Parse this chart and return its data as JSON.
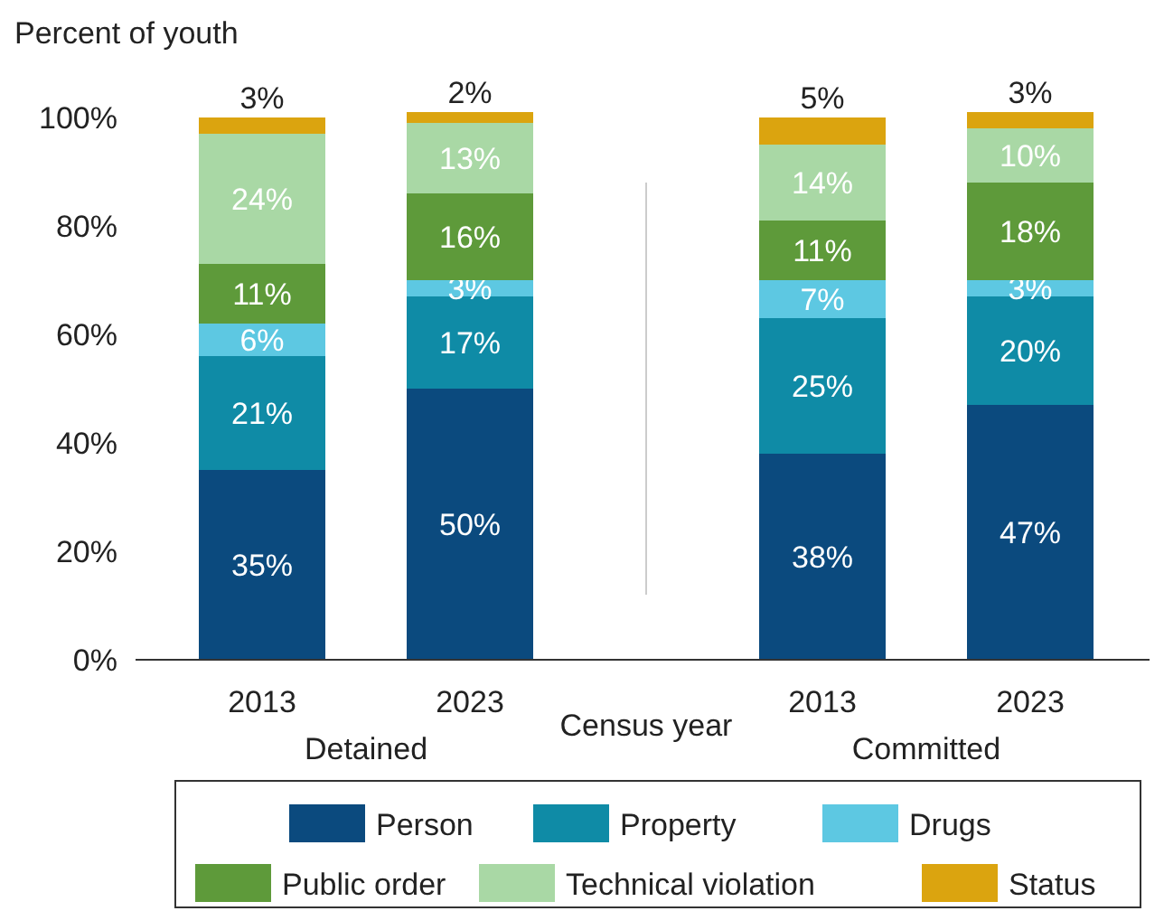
{
  "chart_data": {
    "type": "bar",
    "stacked": true,
    "ylabel": "Percent of youth",
    "xlabel": "Census year",
    "categories": [
      "2013",
      "2023",
      "2013",
      "2023"
    ],
    "annotations": [
      "Detained",
      "Committed"
    ],
    "ylim": [
      0,
      101
    ],
    "yticks": [
      {
        "value": 0,
        "label": "0%"
      },
      {
        "value": 20,
        "label": "20%"
      },
      {
        "value": 40,
        "label": "40%"
      },
      {
        "value": 60,
        "label": "60%"
      },
      {
        "value": 80,
        "label": "80%"
      },
      {
        "value": 100,
        "label": "100%"
      }
    ],
    "legend": "bottom",
    "series": [
      {
        "name": "Person",
        "color": "#0b4a7e",
        "values": [
          35,
          50,
          38,
          47
        ],
        "value_labels": [
          "35%",
          "50%",
          "38%",
          "47%"
        ]
      },
      {
        "name": "Property",
        "color": "#0f8ba6",
        "values": [
          21,
          17,
          25,
          20
        ],
        "value_labels": [
          "21%",
          "17%",
          "25%",
          "20%"
        ]
      },
      {
        "name": "Drugs",
        "color": "#5dc8e2",
        "values": [
          6,
          3,
          7,
          3
        ],
        "value_labels": [
          "6%",
          "3%",
          "7%",
          "3%"
        ]
      },
      {
        "name": "Public order",
        "color": "#5e9a3a",
        "values": [
          11,
          16,
          11,
          18
        ],
        "value_labels": [
          "11%",
          "16%",
          "11%",
          "18%"
        ]
      },
      {
        "name": "Technical violation",
        "color": "#a9d8a5",
        "values": [
          24,
          13,
          14,
          10
        ],
        "value_labels": [
          "24%",
          "13%",
          "14%",
          "10%"
        ]
      },
      {
        "name": "Status",
        "color": "#dba40f",
        "values": [
          3,
          2,
          5,
          3
        ],
        "value_labels": [
          "3%",
          "2%",
          "5%",
          "3%"
        ]
      }
    ]
  }
}
